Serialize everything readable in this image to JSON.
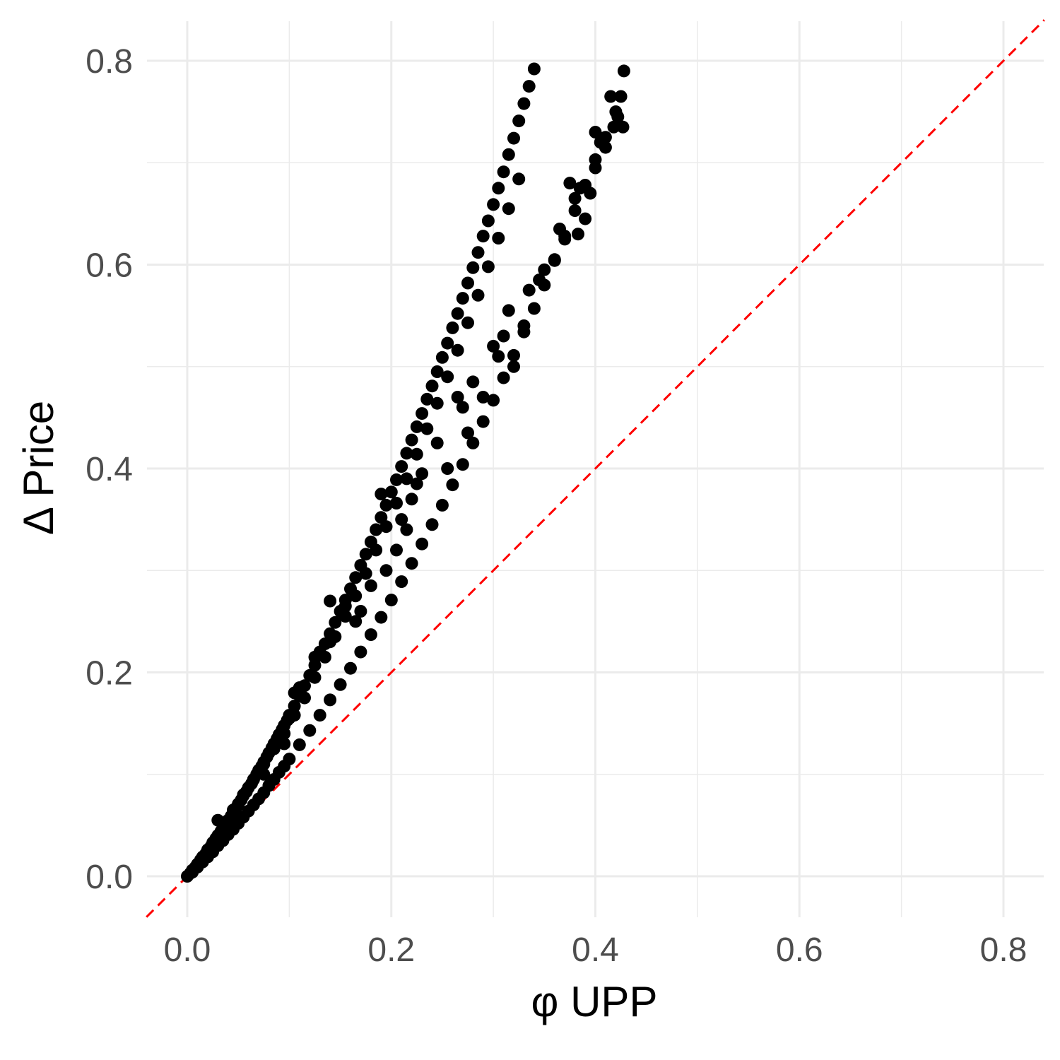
{
  "chart_data": {
    "type": "scatter",
    "title": "",
    "xlabel": "φ UPP",
    "ylabel": "Δ Price",
    "xlim": [
      -0.04,
      0.84
    ],
    "ylim": [
      -0.04,
      0.84
    ],
    "x_ticks": [
      0.0,
      0.2,
      0.4,
      0.6,
      0.8
    ],
    "x_tick_labels": [
      "0.0",
      "0.2",
      "0.4",
      "0.6",
      "0.8"
    ],
    "y_ticks": [
      0.0,
      0.2,
      0.4,
      0.6,
      0.8
    ],
    "y_tick_labels": [
      "0.0",
      "0.2",
      "0.4",
      "0.6",
      "0.8"
    ],
    "grid": true,
    "legend": "none",
    "point_color": "#000000",
    "reference_line": {
      "type": "identity",
      "slope": 1,
      "intercept": 0,
      "color": "#ff0000",
      "style": "dashed"
    },
    "series": [
      {
        "values_note_free": true,
        "points": [
          [
            0.0,
            0.0
          ],
          [
            0.003,
            0.003
          ],
          [
            0.005,
            0.006
          ],
          [
            0.008,
            0.009
          ],
          [
            0.01,
            0.012
          ],
          [
            0.013,
            0.016
          ],
          [
            0.015,
            0.019
          ],
          [
            0.018,
            0.022
          ],
          [
            0.02,
            0.026
          ],
          [
            0.023,
            0.029
          ],
          [
            0.025,
            0.033
          ],
          [
            0.028,
            0.037
          ],
          [
            0.03,
            0.04
          ],
          [
            0.033,
            0.044
          ],
          [
            0.035,
            0.048
          ],
          [
            0.038,
            0.051
          ],
          [
            0.04,
            0.055
          ],
          [
            0.043,
            0.059
          ],
          [
            0.045,
            0.063
          ],
          [
            0.048,
            0.067
          ],
          [
            0.05,
            0.071
          ],
          [
            0.053,
            0.075
          ],
          [
            0.055,
            0.079
          ],
          [
            0.058,
            0.083
          ],
          [
            0.06,
            0.087
          ],
          [
            0.063,
            0.091
          ],
          [
            0.065,
            0.095
          ],
          [
            0.068,
            0.1
          ],
          [
            0.07,
            0.104
          ],
          [
            0.073,
            0.108
          ],
          [
            0.075,
            0.112
          ],
          [
            0.078,
            0.117
          ],
          [
            0.08,
            0.121
          ],
          [
            0.083,
            0.126
          ],
          [
            0.085,
            0.13
          ],
          [
            0.088,
            0.135
          ],
          [
            0.09,
            0.139
          ],
          [
            0.093,
            0.144
          ],
          [
            0.095,
            0.148
          ],
          [
            0.098,
            0.153
          ],
          [
            0.1,
            0.158
          ],
          [
            0.105,
            0.167
          ],
          [
            0.11,
            0.177
          ],
          [
            0.115,
            0.187
          ],
          [
            0.12,
            0.197
          ],
          [
            0.125,
            0.207
          ],
          [
            0.13,
            0.217
          ],
          [
            0.135,
            0.228
          ],
          [
            0.14,
            0.238
          ],
          [
            0.145,
            0.249
          ],
          [
            0.15,
            0.26
          ],
          [
            0.155,
            0.271
          ],
          [
            0.16,
            0.282
          ],
          [
            0.165,
            0.293
          ],
          [
            0.17,
            0.305
          ],
          [
            0.175,
            0.316
          ],
          [
            0.18,
            0.328
          ],
          [
            0.185,
            0.34
          ],
          [
            0.19,
            0.352
          ],
          [
            0.195,
            0.364
          ],
          [
            0.2,
            0.377
          ],
          [
            0.205,
            0.389
          ],
          [
            0.21,
            0.402
          ],
          [
            0.215,
            0.415
          ],
          [
            0.22,
            0.428
          ],
          [
            0.225,
            0.441
          ],
          [
            0.23,
            0.454
          ],
          [
            0.235,
            0.468
          ],
          [
            0.24,
            0.481
          ],
          [
            0.245,
            0.495
          ],
          [
            0.25,
            0.509
          ],
          [
            0.255,
            0.523
          ],
          [
            0.26,
            0.538
          ],
          [
            0.265,
            0.552
          ],
          [
            0.27,
            0.567
          ],
          [
            0.275,
            0.582
          ],
          [
            0.28,
            0.597
          ],
          [
            0.285,
            0.612
          ],
          [
            0.29,
            0.628
          ],
          [
            0.295,
            0.643
          ],
          [
            0.3,
            0.659
          ],
          [
            0.305,
            0.675
          ],
          [
            0.31,
            0.691
          ],
          [
            0.315,
            0.708
          ],
          [
            0.32,
            0.724
          ],
          [
            0.325,
            0.741
          ],
          [
            0.33,
            0.758
          ],
          [
            0.335,
            0.775
          ],
          [
            0.34,
            0.792
          ],
          [
            0.005,
            0.004
          ],
          [
            0.01,
            0.009
          ],
          [
            0.015,
            0.014
          ],
          [
            0.02,
            0.019
          ],
          [
            0.025,
            0.024
          ],
          [
            0.03,
            0.03
          ],
          [
            0.035,
            0.035
          ],
          [
            0.04,
            0.041
          ],
          [
            0.045,
            0.046
          ],
          [
            0.05,
            0.052
          ],
          [
            0.055,
            0.058
          ],
          [
            0.06,
            0.064
          ],
          [
            0.065,
            0.07
          ],
          [
            0.07,
            0.076
          ],
          [
            0.075,
            0.082
          ],
          [
            0.08,
            0.089
          ],
          [
            0.085,
            0.095
          ],
          [
            0.09,
            0.102
          ],
          [
            0.095,
            0.108
          ],
          [
            0.1,
            0.115
          ],
          [
            0.11,
            0.129
          ],
          [
            0.12,
            0.143
          ],
          [
            0.13,
            0.158
          ],
          [
            0.14,
            0.173
          ],
          [
            0.15,
            0.188
          ],
          [
            0.16,
            0.204
          ],
          [
            0.17,
            0.22
          ],
          [
            0.18,
            0.237
          ],
          [
            0.19,
            0.254
          ],
          [
            0.2,
            0.271
          ],
          [
            0.21,
            0.289
          ],
          [
            0.22,
            0.307
          ],
          [
            0.23,
            0.326
          ],
          [
            0.24,
            0.345
          ],
          [
            0.25,
            0.364
          ],
          [
            0.26,
            0.384
          ],
          [
            0.27,
            0.404
          ],
          [
            0.28,
            0.425
          ],
          [
            0.29,
            0.446
          ],
          [
            0.3,
            0.467
          ],
          [
            0.31,
            0.489
          ],
          [
            0.32,
            0.511
          ],
          [
            0.33,
            0.534
          ],
          [
            0.34,
            0.557
          ],
          [
            0.35,
            0.58
          ],
          [
            0.36,
            0.604
          ],
          [
            0.37,
            0.628
          ],
          [
            0.38,
            0.653
          ],
          [
            0.39,
            0.678
          ],
          [
            0.4,
            0.703
          ],
          [
            0.035,
            0.05
          ],
          [
            0.045,
            0.065
          ],
          [
            0.055,
            0.08
          ],
          [
            0.065,
            0.095
          ],
          [
            0.075,
            0.11
          ],
          [
            0.085,
            0.125
          ],
          [
            0.095,
            0.14
          ],
          [
            0.105,
            0.158
          ],
          [
            0.115,
            0.175
          ],
          [
            0.125,
            0.195
          ],
          [
            0.135,
            0.215
          ],
          [
            0.145,
            0.235
          ],
          [
            0.155,
            0.255
          ],
          [
            0.165,
            0.275
          ],
          [
            0.175,
            0.297
          ],
          [
            0.185,
            0.32
          ],
          [
            0.195,
            0.343
          ],
          [
            0.205,
            0.366
          ],
          [
            0.215,
            0.39
          ],
          [
            0.225,
            0.414
          ],
          [
            0.235,
            0.439
          ],
          [
            0.245,
            0.464
          ],
          [
            0.255,
            0.49
          ],
          [
            0.265,
            0.516
          ],
          [
            0.275,
            0.543
          ],
          [
            0.285,
            0.57
          ],
          [
            0.295,
            0.598
          ],
          [
            0.305,
            0.626
          ],
          [
            0.315,
            0.655
          ],
          [
            0.325,
            0.684
          ],
          [
            0.03,
            0.055
          ],
          [
            0.05,
            0.07
          ],
          [
            0.075,
            0.1
          ],
          [
            0.095,
            0.13
          ],
          [
            0.1,
            0.155
          ],
          [
            0.105,
            0.18
          ],
          [
            0.11,
            0.185
          ],
          [
            0.125,
            0.215
          ],
          [
            0.13,
            0.22
          ],
          [
            0.14,
            0.23
          ],
          [
            0.14,
            0.27
          ],
          [
            0.155,
            0.265
          ],
          [
            0.165,
            0.25
          ],
          [
            0.17,
            0.26
          ],
          [
            0.18,
            0.285
          ],
          [
            0.19,
            0.375
          ],
          [
            0.195,
            0.3
          ],
          [
            0.205,
            0.32
          ],
          [
            0.21,
            0.35
          ],
          [
            0.215,
            0.34
          ],
          [
            0.22,
            0.37
          ],
          [
            0.225,
            0.385
          ],
          [
            0.23,
            0.395
          ],
          [
            0.245,
            0.425
          ],
          [
            0.255,
            0.4
          ],
          [
            0.265,
            0.47
          ],
          [
            0.27,
            0.46
          ],
          [
            0.275,
            0.435
          ],
          [
            0.28,
            0.485
          ],
          [
            0.29,
            0.47
          ],
          [
            0.3,
            0.52
          ],
          [
            0.305,
            0.51
          ],
          [
            0.31,
            0.53
          ],
          [
            0.315,
            0.555
          ],
          [
            0.32,
            0.5
          ],
          [
            0.33,
            0.54
          ],
          [
            0.335,
            0.575
          ],
          [
            0.345,
            0.585
          ],
          [
            0.35,
            0.595
          ],
          [
            0.36,
            0.605
          ],
          [
            0.365,
            0.635
          ],
          [
            0.37,
            0.625
          ],
          [
            0.375,
            0.68
          ],
          [
            0.38,
            0.665
          ],
          [
            0.385,
            0.675
          ],
          [
            0.39,
            0.645
          ],
          [
            0.395,
            0.67
          ],
          [
            0.4,
            0.695
          ],
          [
            0.405,
            0.72
          ],
          [
            0.41,
            0.715
          ],
          [
            0.415,
            0.765
          ],
          [
            0.418,
            0.735
          ],
          [
            0.42,
            0.75
          ],
          [
            0.422,
            0.745
          ],
          [
            0.425,
            0.765
          ],
          [
            0.427,
            0.735
          ],
          [
            0.428,
            0.79
          ],
          [
            0.4,
            0.73
          ],
          [
            0.41,
            0.725
          ],
          [
            0.383,
            0.63
          ]
        ]
      }
    ]
  }
}
